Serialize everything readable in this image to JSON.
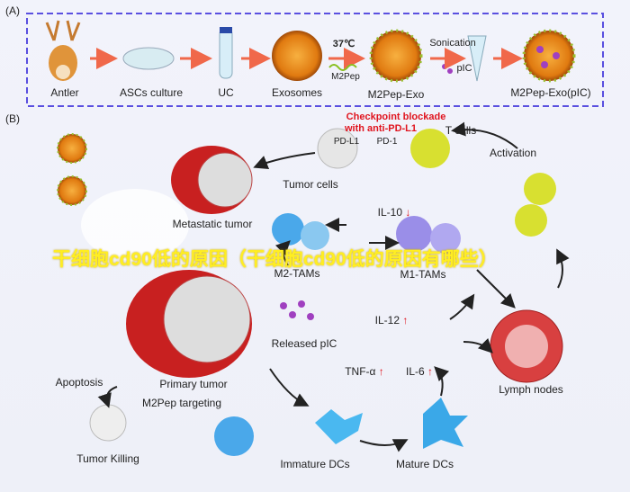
{
  "panel_a": {
    "label": "(A)",
    "steps": [
      "Antler",
      "ASCs culture",
      "UC",
      "Exosomes",
      "M2Pep-Exo",
      "M2Pep-Exo(pIC)"
    ],
    "temp": "37℃",
    "peptide": "M2Pep",
    "sonication": "Sonication",
    "pic": "pIC"
  },
  "panel_b": {
    "label": "(B)",
    "checkpoint": "Checkpoint blockade",
    "checkpoint_sub": "with anti-PD-L1",
    "t_cells": "T cells",
    "pd_l1": "PD-L1",
    "pd_1": "PD-1",
    "activation": "Activation",
    "tumor_cells": "Tumor cells",
    "il10": "IL-10",
    "down_arrow": "↓",
    "up_arrow": "↑",
    "metastatic": "Metastatic tumor",
    "m2_tams": "M2-TAMs",
    "m1_tams": "M1-TAMs",
    "il12": "IL-12",
    "released_pic": "Released pIC",
    "tnf": "TNF-α",
    "il6": "IL-6",
    "lymph": "Lymph nodes",
    "apoptosis": "Apoptosis",
    "primary": "Primary tumor",
    "targeting": "M2Pep targeting",
    "killing": "Tumor Killing",
    "immature": "Immature DCs",
    "mature": "Mature DCs"
  },
  "watermark": "干细胞cd90低的原因（干细胞cd90低的原因有哪些）",
  "colors": {
    "frame": "#5a4fe0",
    "arrow": "#f0684a",
    "tumor": "#d62a2a",
    "m2": "#4aa8ea",
    "m1": "#9a8ee8",
    "tcell": "#d8e030"
  }
}
